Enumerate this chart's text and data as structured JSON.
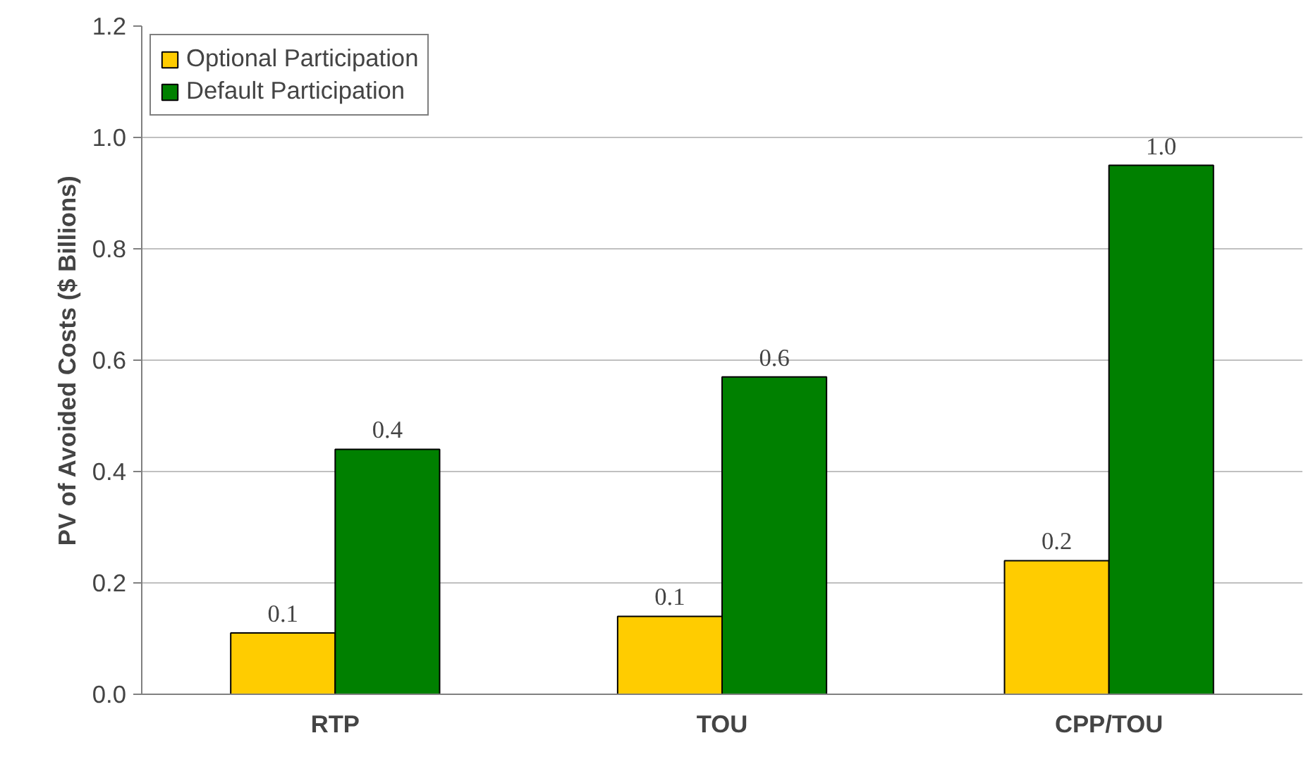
{
  "chart_data": {
    "type": "bar",
    "ylabel": "PV of Avoided Costs ($ Billions)",
    "categories": [
      "RTP",
      "TOU",
      "CPP/TOU"
    ],
    "series": [
      {
        "name": "Optional Participation",
        "color": "#ffcc00",
        "values": [
          0.11,
          0.14,
          0.24
        ],
        "value_labels": [
          "0.1",
          "0.1",
          "0.2"
        ]
      },
      {
        "name": "Default Participation",
        "color": "#008000",
        "values": [
          0.44,
          0.57,
          0.95
        ],
        "value_labels": [
          "0.4",
          "0.6",
          "1.0"
        ]
      }
    ],
    "ylim": [
      0,
      1.2
    ],
    "yticks": [
      {
        "value": 0,
        "label": "0.0"
      },
      {
        "value": 0.2,
        "label": "0.2"
      },
      {
        "value": 0.4,
        "label": "0.4"
      },
      {
        "value": 0.6,
        "label": "0.6"
      },
      {
        "value": 0.8,
        "label": "0.8"
      },
      {
        "value": 1.0,
        "label": "1.0"
      },
      {
        "value": 1.2,
        "label": "1.2"
      }
    ],
    "grid": "y",
    "legend": "top left"
  }
}
